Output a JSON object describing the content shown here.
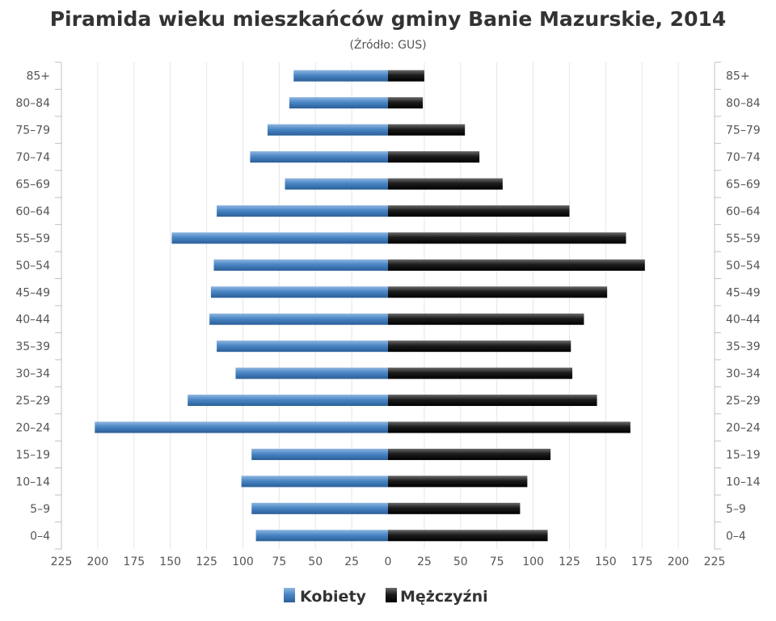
{
  "chart_data": {
    "type": "bar",
    "orientation": "horizontal-pyramid",
    "title": "Piramida wieku mieszkańców gminy Banie Mazurskie, 2014",
    "subtitle": "(Źródło: GUS)",
    "categories": [
      "85+",
      "80–84",
      "75–79",
      "70–74",
      "65–69",
      "60–64",
      "55–59",
      "50–54",
      "45–49",
      "40–44",
      "35–39",
      "30–34",
      "25–29",
      "20–24",
      "15–19",
      "10–14",
      "5–9",
      "0–4"
    ],
    "series": [
      {
        "name": "Kobiety",
        "color": "#3d78b5",
        "side": "left",
        "values": [
          65,
          68,
          83,
          95,
          71,
          118,
          149,
          120,
          122,
          123,
          118,
          105,
          138,
          202,
          94,
          101,
          94,
          91
        ]
      },
      {
        "name": "Mężczyźni",
        "color": "#1a1a1a",
        "side": "right",
        "values": [
          25,
          24,
          53,
          63,
          79,
          125,
          164,
          177,
          151,
          135,
          126,
          127,
          144,
          167,
          112,
          96,
          91,
          110
        ]
      }
    ],
    "x_ticks": [
      225,
      200,
      175,
      150,
      125,
      100,
      75,
      50,
      25,
      0,
      25,
      50,
      75,
      100,
      125,
      150,
      175,
      200,
      225
    ],
    "xlim": [
      -225,
      225
    ],
    "grid": true,
    "legend": "bottom"
  }
}
